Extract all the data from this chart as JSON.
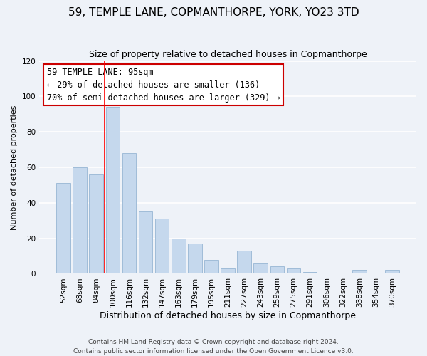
{
  "title": "59, TEMPLE LANE, COPMANTHORPE, YORK, YO23 3TD",
  "subtitle": "Size of property relative to detached houses in Copmanthorpe",
  "xlabel": "Distribution of detached houses by size in Copmanthorpe",
  "ylabel": "Number of detached properties",
  "bar_labels": [
    "52sqm",
    "68sqm",
    "84sqm",
    "100sqm",
    "116sqm",
    "132sqm",
    "147sqm",
    "163sqm",
    "179sqm",
    "195sqm",
    "211sqm",
    "227sqm",
    "243sqm",
    "259sqm",
    "275sqm",
    "291sqm",
    "306sqm",
    "322sqm",
    "338sqm",
    "354sqm",
    "370sqm"
  ],
  "bar_values": [
    51,
    60,
    56,
    94,
    68,
    35,
    31,
    20,
    17,
    8,
    3,
    13,
    6,
    4,
    3,
    1,
    0,
    0,
    2,
    0,
    2
  ],
  "bar_color": "#c5d8ed",
  "bar_edge_color": "#a0bcd8",
  "reference_line_idx": 3,
  "annotation_line1": "59 TEMPLE LANE: 95sqm",
  "annotation_line2": "← 29% of detached houses are smaller (136)",
  "annotation_line3": "70% of semi-detached houses are larger (329) →",
  "annotation_box_color": "#ffffff",
  "annotation_box_edge_color": "#cc0000",
  "ylim": [
    0,
    120
  ],
  "yticks": [
    0,
    20,
    40,
    60,
    80,
    100,
    120
  ],
  "footer_line1": "Contains HM Land Registry data © Crown copyright and database right 2024.",
  "footer_line2": "Contains public sector information licensed under the Open Government Licence v3.0.",
  "background_color": "#eef2f8",
  "grid_color": "#ffffff",
  "title_fontsize": 11,
  "subtitle_fontsize": 9,
  "xlabel_fontsize": 9,
  "ylabel_fontsize": 8,
  "tick_fontsize": 7.5,
  "annotation_fontsize": 8.5,
  "footer_fontsize": 6.5
}
